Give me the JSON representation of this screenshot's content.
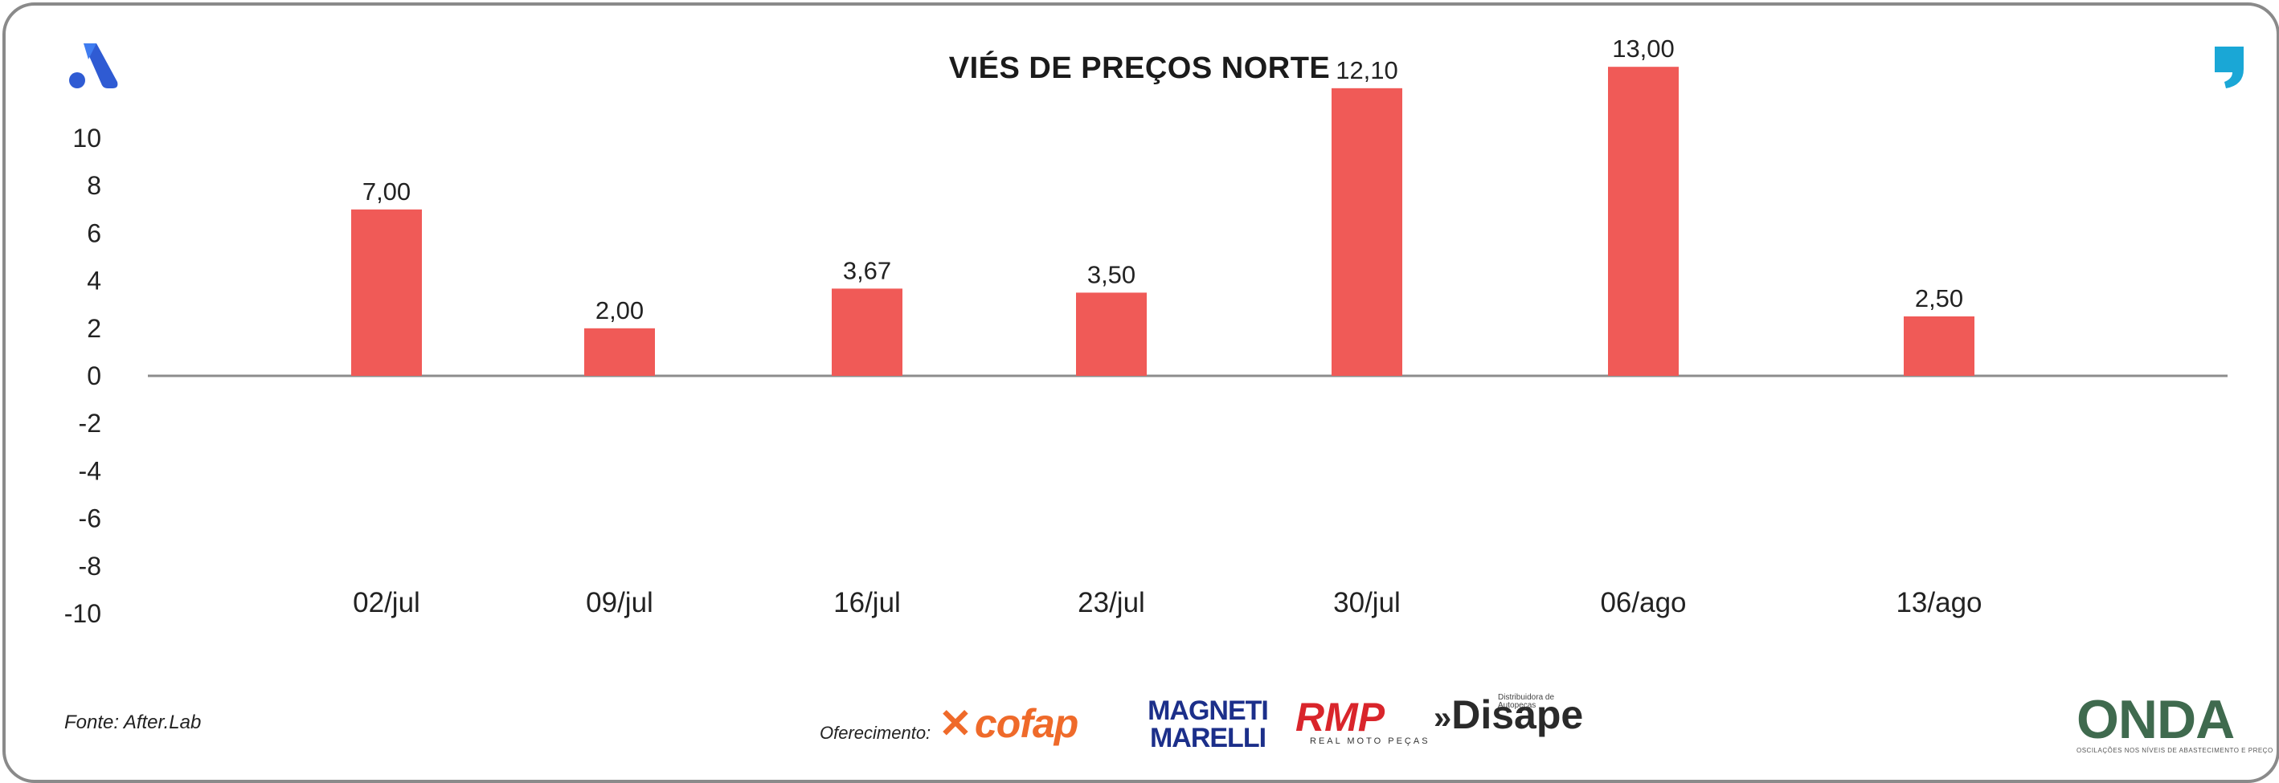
{
  "colors": {
    "bar": "#f05a57",
    "axis": "#8c8c8c",
    "frame": "#8a8a8a",
    "brand_blue": "#2f5bd3",
    "brand_teal": "#1aa7d6"
  },
  "icons": {
    "top_left": "afterlab-a-icon",
    "top_right": "comma-quote-icon"
  },
  "chart_data": {
    "type": "bar",
    "title": "VIÉS DE PREÇOS NORTE",
    "categories": [
      "02/jul",
      "09/jul",
      "16/jul",
      "23/jul",
      "30/jul",
      "06/ago",
      "13/ago"
    ],
    "values": [
      7.0,
      2.0,
      3.67,
      3.5,
      12.1,
      13.0,
      2.5
    ],
    "data_labels": [
      "7,00",
      "2,00",
      "3,67",
      "3,50",
      "12,10",
      "13,00",
      "2,50"
    ],
    "y_ticks": [
      "10",
      "8",
      "6",
      "4",
      "2",
      "0",
      "-2",
      "-4",
      "-6",
      "-8",
      "-10"
    ],
    "ylim": [
      -10,
      10
    ],
    "grid": false,
    "legend": "none"
  },
  "footer": {
    "source": "Fonte: After.Lab",
    "sponsor_label": "Oferecimento:",
    "sponsors": [
      "cofap",
      "MAGNETI MARELLI",
      "RMP",
      "Disape",
      "ONDA"
    ],
    "rmp_sub": "REAL MOTO PEÇAS",
    "disape_sub": "Distribuidora de Autopeças",
    "onda_sub": "OSCILAÇÕES NOS NÍVEIS DE ABASTECIMENTO E PREÇO"
  }
}
